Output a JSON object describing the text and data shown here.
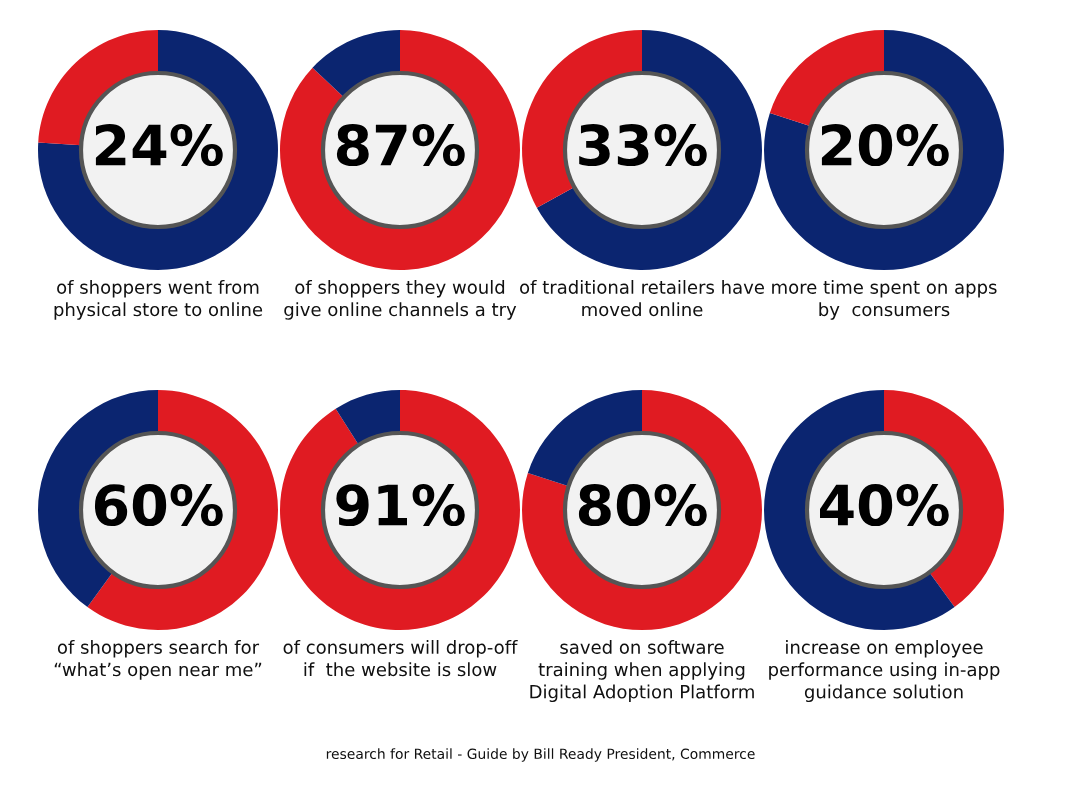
{
  "chart_data": [
    {
      "type": "donut",
      "categories": [
        null,
        null
      ],
      "values": [
        76,
        24
      ],
      "colors": [
        "#0b2570",
        "#e01b22"
      ],
      "value_labels": [
        null,
        "24%"
      ],
      "annotations": [
        "of shoppers went from\nphysical store to online"
      ]
    },
    {
      "type": "donut",
      "categories": [
        null,
        null
      ],
      "values": [
        87,
        13
      ],
      "colors": [
        "#e01b22",
        "#0b2570"
      ],
      "value_labels": [
        "87%",
        null
      ],
      "annotations": [
        "of shoppers they would\ngive online channels a try"
      ]
    },
    {
      "type": "donut",
      "categories": [
        null,
        null
      ],
      "values": [
        67,
        33
      ],
      "colors": [
        "#0b2570",
        "#e01b22"
      ],
      "value_labels": [
        null,
        "33%"
      ],
      "annotations": [
        "of traditional retailers have\nmoved online"
      ]
    },
    {
      "type": "donut",
      "categories": [
        null,
        null
      ],
      "values": [
        80,
        20
      ],
      "colors": [
        "#0b2570",
        "#e01b22"
      ],
      "value_labels": [
        null,
        "20%"
      ],
      "annotations": [
        "more time spent on apps\nby  consumers"
      ]
    },
    {
      "type": "donut",
      "categories": [
        null,
        null
      ],
      "values": [
        60,
        40
      ],
      "colors": [
        "#e01b22",
        "#0b2570"
      ],
      "value_labels": [
        "60%",
        null
      ],
      "annotations": [
        "of shoppers search for\n“what’s open near me”"
      ]
    },
    {
      "type": "donut",
      "categories": [
        null,
        null
      ],
      "values": [
        91,
        9
      ],
      "colors": [
        "#e01b22",
        "#0b2570"
      ],
      "value_labels": [
        "91%",
        null
      ],
      "annotations": [
        "of consumers will drop-off\nif  the website is slow"
      ]
    },
    {
      "type": "donut",
      "categories": [
        null,
        null
      ],
      "values": [
        80,
        20
      ],
      "colors": [
        "#e01b22",
        "#0b2570"
      ],
      "value_labels": [
        "80%",
        null
      ],
      "annotations": [
        "saved on software\ntraining when applying\nDigital Adoption Platform"
      ]
    },
    {
      "type": "donut",
      "categories": [
        null,
        null
      ],
      "values": [
        40,
        60
      ],
      "colors": [
        "#e01b22",
        "#0b2570"
      ],
      "value_labels": [
        "40%",
        null
      ],
      "annotations": [
        "increase on employee\nperformance using in-app\nguidance solution",
        "research for Retail - Guide by Bill Ready President, Commerce"
      ]
    }
  ]
}
